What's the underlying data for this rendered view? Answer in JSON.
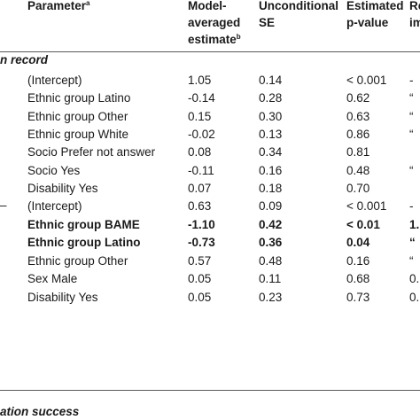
{
  "header": {
    "parameter": "Parameter",
    "parameter_sup": "a",
    "estimate_line1": "Model-",
    "estimate_line2": "averaged",
    "estimate_line3": "estimate",
    "estimate_sup": "b",
    "se_line1": "Unconditional",
    "se_line2": "SE",
    "pvalue_line1": "Estimated",
    "pvalue_line2": "p-value",
    "last_line1": "Re",
    "last_line2": "im"
  },
  "sections": {
    "first": "n record",
    "second_marker": "–",
    "third": "ation success"
  },
  "block1": [
    {
      "param": "(Intercept)",
      "est": "1.05",
      "se": "0.14",
      "p": "< 0.001",
      "last": "-",
      "bold": false
    },
    {
      "param": "Ethnic group Latino",
      "est": "-0.14",
      "se": "0.28",
      "p": "0.62",
      "last": "“",
      "bold": false
    },
    {
      "param": "Ethnic group Other",
      "est": "0.15",
      "se": "0.30",
      "p": "0.63",
      "last": "“",
      "bold": false
    },
    {
      "param": "Ethnic group White",
      "est": "-0.02",
      "se": "0.13",
      "p": "0.86",
      "last": "“",
      "bold": false
    },
    {
      "param": "Socio Prefer not answer",
      "est": "0.08",
      "se": "0.34",
      "p": "0.81",
      "last": "",
      "bold": false
    },
    {
      "param": "Socio Yes",
      "est": "-0.11",
      "se": "0.16",
      "p": "0.48",
      "last": "“",
      "bold": false
    },
    {
      "param": "Disability Yes",
      "est": "0.07",
      "se": "0.18",
      "p": "0.70",
      "last": "",
      "bold": false
    }
  ],
  "block2": [
    {
      "param": "(Intercept)",
      "est": "0.63",
      "se": "0.09",
      "p": "< 0.001",
      "last": "-",
      "bold": false
    },
    {
      "param": "Ethnic group BAME",
      "est": "-1.10",
      "se": "0.42",
      "p": "< 0.01",
      "last": "1.",
      "bold": true
    },
    {
      "param": "Ethnic group Latino",
      "est": "-0.73",
      "se": "0.36",
      "p": "0.04",
      "last": "“",
      "bold": true
    },
    {
      "param": "Ethnic group Other",
      "est": "0.57",
      "se": "0.48",
      "p": "0.16",
      "last": "“",
      "bold": false
    },
    {
      "param": "Sex Male",
      "est": "0.05",
      "se": "0.11",
      "p": "0.68",
      "last": "0.",
      "bold": false
    },
    {
      "param": "Disability Yes",
      "est": "0.05",
      "se": "0.23",
      "p": "0.73",
      "last": "0.",
      "bold": false
    }
  ]
}
